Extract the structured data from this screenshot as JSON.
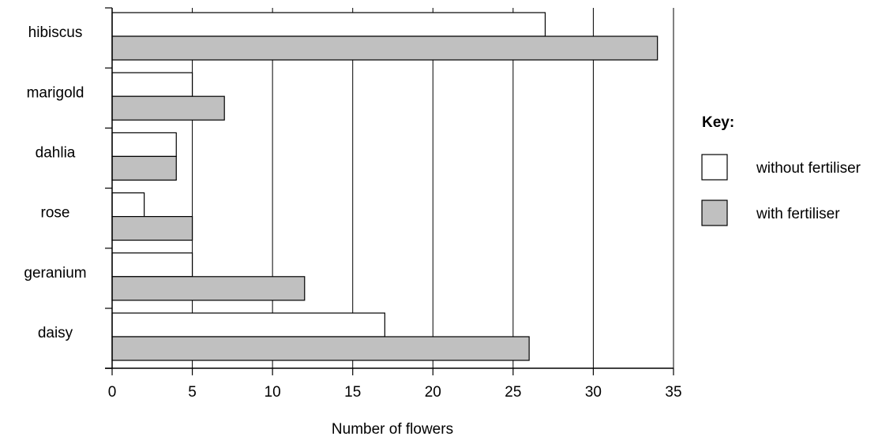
{
  "chart_data": {
    "type": "bar",
    "orientation": "horizontal",
    "categories": [
      "hibiscus",
      "marigold",
      "dahlia",
      "rose",
      "geranium",
      "daisy"
    ],
    "series": [
      {
        "name": "without fertiliser",
        "values": [
          27,
          5,
          4,
          2,
          5,
          17
        ],
        "color": "#ffffff"
      },
      {
        "name": "with fertiliser",
        "values": [
          34,
          7,
          4,
          5,
          12,
          26
        ],
        "color": "#c0c0c0"
      }
    ],
    "xlabel": "Number of flowers",
    "ylabel": "",
    "xlim": [
      0,
      35
    ],
    "x_ticks": [
      "0",
      "5",
      "10",
      "15",
      "20",
      "25",
      "30",
      "35"
    ],
    "grid": "vertical",
    "legend": {
      "title": "Key:",
      "placement": "right"
    }
  }
}
